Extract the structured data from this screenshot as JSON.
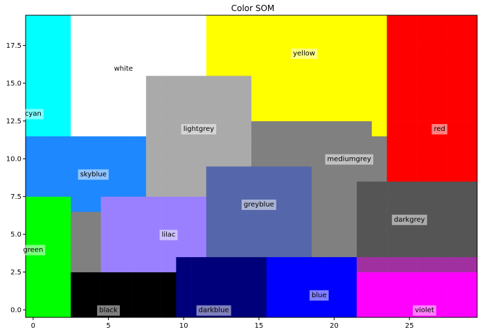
{
  "chart_data": {
    "type": "heatmap",
    "title": "Color SOM",
    "xlabel": "",
    "ylabel": "",
    "grid": false,
    "xlim": [
      -0.5,
      29.5
    ],
    "ylim": [
      -0.5,
      19.5
    ],
    "x_ticks": [
      0,
      5,
      10,
      15,
      20,
      25
    ],
    "y_ticks": [
      0.0,
      2.5,
      5.0,
      7.5,
      10.0,
      12.5,
      15.0,
      17.5
    ],
    "x_tick_labels": [
      "0",
      "5",
      "10",
      "15",
      "20",
      "25"
    ],
    "y_tick_labels": [
      "0.0",
      "2.5",
      "5.0",
      "7.5",
      "10.0",
      "12.5",
      "15.0",
      "17.5"
    ],
    "palette": {
      "cyan": "#00ffff",
      "white": "#ffffff",
      "yellow": "#ffff00",
      "red": "#ff0000",
      "lightgrey": "#aaaaaa",
      "mediumgrey": "#808080",
      "skyblue": "#1e88ff",
      "greyblue": "#5566aa",
      "darkgrey": "#555555",
      "lilac": "#9a80ff",
      "green": "#00ff00",
      "black": "#000000",
      "darkblue": "#00007a",
      "blue": "#0000ff",
      "violet": "#ff00ff",
      "purple": "#a030a0"
    },
    "regions": [
      {
        "color": "cyan",
        "x0": 0,
        "x1": 2,
        "y0": 11,
        "y1": 19
      },
      {
        "color": "white",
        "x0": 3,
        "x1": 11,
        "y0": 12,
        "y1": 19
      },
      {
        "color": "yellow",
        "x0": 12,
        "x1": 23,
        "y0": 12,
        "y1": 19
      },
      {
        "color": "red",
        "x0": 24,
        "x1": 29,
        "y0": 9,
        "y1": 19
      },
      {
        "color": "lightgrey",
        "x0": 8,
        "x1": 14,
        "y0": 8,
        "y1": 15
      },
      {
        "color": "mediumgrey",
        "x0": 15,
        "x1": 22,
        "y0": 6,
        "y1": 12
      },
      {
        "color": "skyblue",
        "x0": 0,
        "x1": 7,
        "y0": 7,
        "y1": 11
      },
      {
        "color": "greyblue",
        "x0": 12,
        "x1": 18,
        "y0": 4,
        "y1": 9
      },
      {
        "color": "darkgrey",
        "x0": 22,
        "x1": 29,
        "y0": 4,
        "y1": 8
      },
      {
        "color": "lilac",
        "x0": 5,
        "x1": 11,
        "y0": 2,
        "y1": 7
      },
      {
        "color": "green",
        "x0": 0,
        "x1": 2,
        "y0": 0,
        "y1": 7
      },
      {
        "color": "black",
        "x0": 3,
        "x1": 9,
        "y0": 0,
        "y1": 2
      },
      {
        "color": "darkblue",
        "x0": 10,
        "x1": 15,
        "y0": 0,
        "y1": 3
      },
      {
        "color": "blue",
        "x0": 16,
        "x1": 21,
        "y0": 0,
        "y1": 3
      },
      {
        "color": "violet",
        "x0": 22,
        "x1": 29,
        "y0": 0,
        "y1": 2
      },
      {
        "color": "purple",
        "x0": 22,
        "x1": 29,
        "y0": 3,
        "y1": 3
      }
    ],
    "annotations": [
      {
        "text": "white",
        "x": 6,
        "y": 16
      },
      {
        "text": "yellow",
        "x": 18,
        "y": 17
      },
      {
        "text": "cyan",
        "x": 0,
        "y": 13
      },
      {
        "text": "red",
        "x": 27,
        "y": 12
      },
      {
        "text": "lightgrey",
        "x": 11,
        "y": 12
      },
      {
        "text": "mediumgrey",
        "x": 21,
        "y": 10
      },
      {
        "text": "skyblue",
        "x": 4,
        "y": 9
      },
      {
        "text": "greyblue",
        "x": 15,
        "y": 7
      },
      {
        "text": "darkgrey",
        "x": 25,
        "y": 6
      },
      {
        "text": "lilac",
        "x": 9,
        "y": 5
      },
      {
        "text": "green",
        "x": 0,
        "y": 4
      },
      {
        "text": "blue",
        "x": 19,
        "y": 1
      },
      {
        "text": "black",
        "x": 5,
        "y": 0
      },
      {
        "text": "darkblue",
        "x": 12,
        "y": 0
      },
      {
        "text": "violet",
        "x": 26,
        "y": 0
      }
    ]
  }
}
